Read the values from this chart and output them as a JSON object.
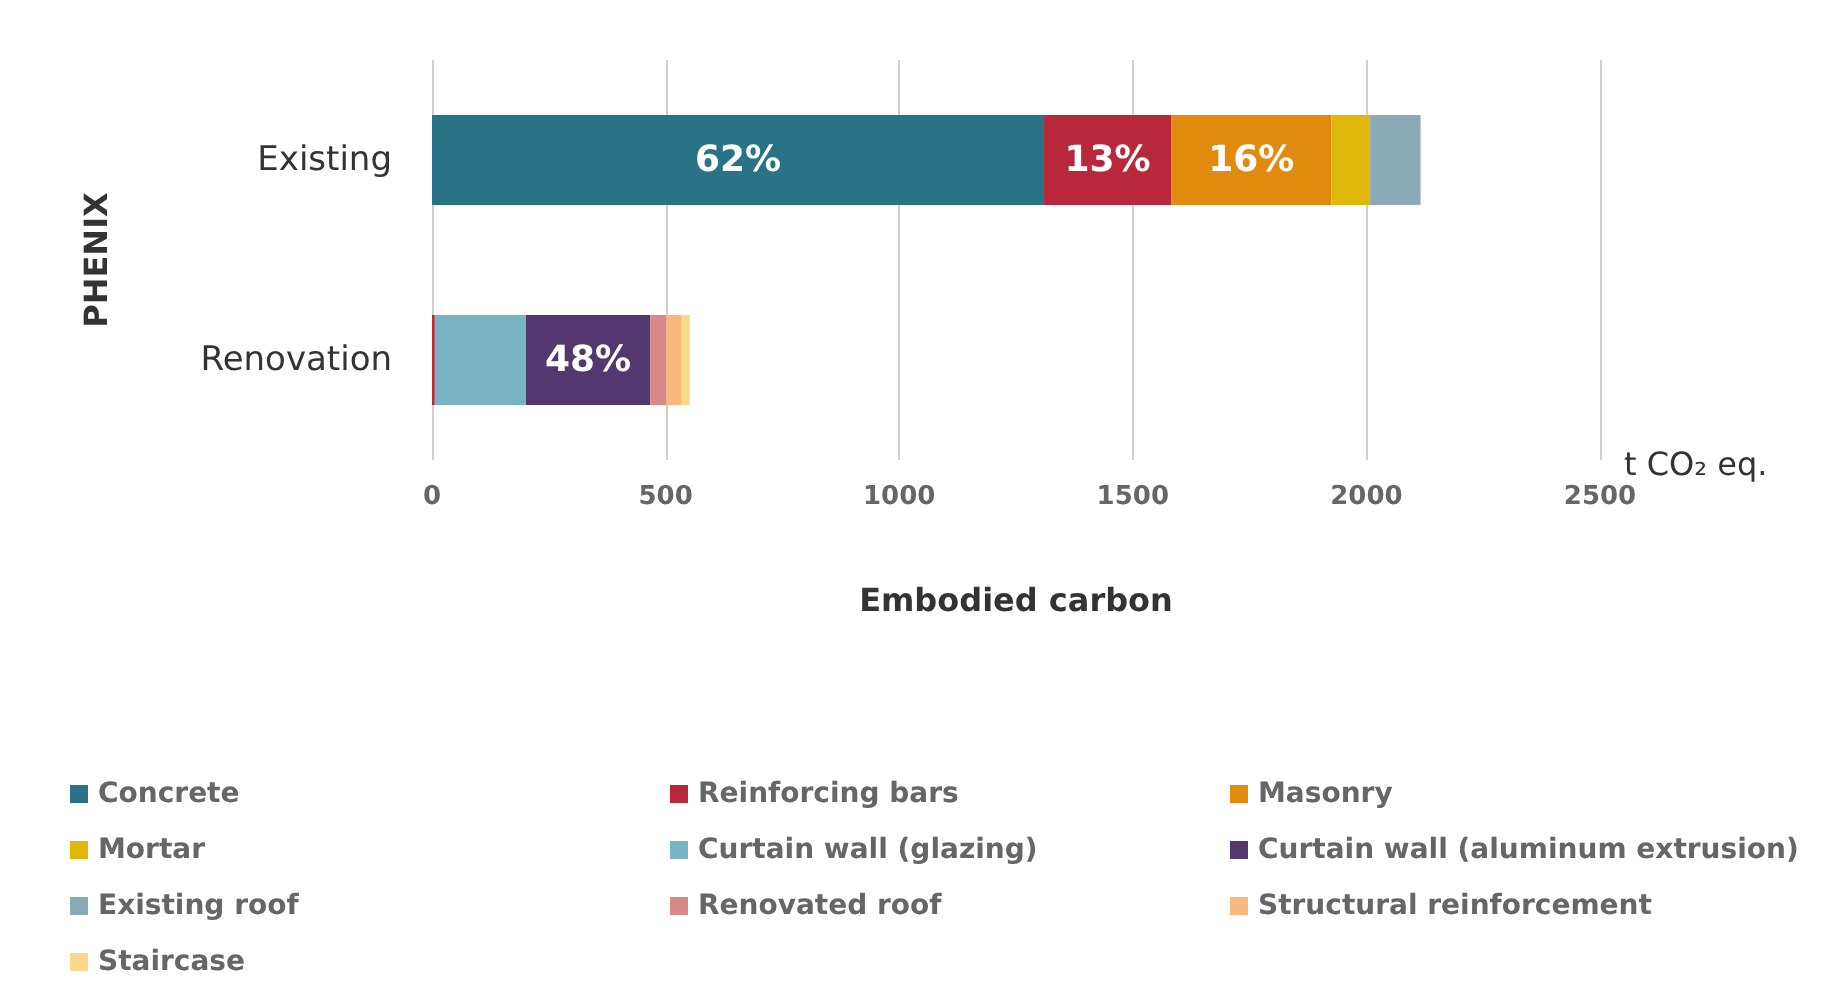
{
  "chart_data": {
    "type": "bar",
    "orientation": "horizontal",
    "stacked": true,
    "ylabel": "PHENIX",
    "xlabel": "Embodied carbon",
    "annotations": [
      "t CO₂ eq.",
      "62%",
      "13%",
      "16%",
      "48%"
    ],
    "categories": [
      "Existing",
      "Renovation"
    ],
    "xlim": [
      0,
      2500
    ],
    "xticks": [
      0,
      500,
      1000,
      1500,
      2000,
      2500
    ],
    "grid": "x",
    "legend": "bottom",
    "series": [
      {
        "name": "Concrete",
        "color": "#2a7286",
        "values": [
          1310,
          null
        ]
      },
      {
        "name": "Reinforcing bars",
        "color": "#b8283a",
        "values": [
          272,
          6
        ]
      },
      {
        "name": "Masonry",
        "color": "#e08a0e",
        "values": [
          343,
          null
        ]
      },
      {
        "name": "Mortar",
        "color": "#e0b80c",
        "values": [
          83,
          null
        ]
      },
      {
        "name": "Curtain wall (glazing)",
        "color": "#7ab4c4",
        "values": [
          null,
          195
        ]
      },
      {
        "name": "Curtain wall (aluminum extrusion)",
        "color": "#52386e",
        "values": [
          null,
          266
        ]
      },
      {
        "name": "Existing roof",
        "color": "#8aaab8",
        "values": [
          108,
          null
        ]
      },
      {
        "name": "Renovated roof",
        "color": "#d98888",
        "values": [
          null,
          34
        ]
      },
      {
        "name": "Structural reinforcement",
        "color": "#f8b880",
        "values": [
          null,
          32
        ]
      },
      {
        "name": "Staircase",
        "color": "#fbd98a",
        "values": [
          null,
          19
        ]
      }
    ]
  }
}
